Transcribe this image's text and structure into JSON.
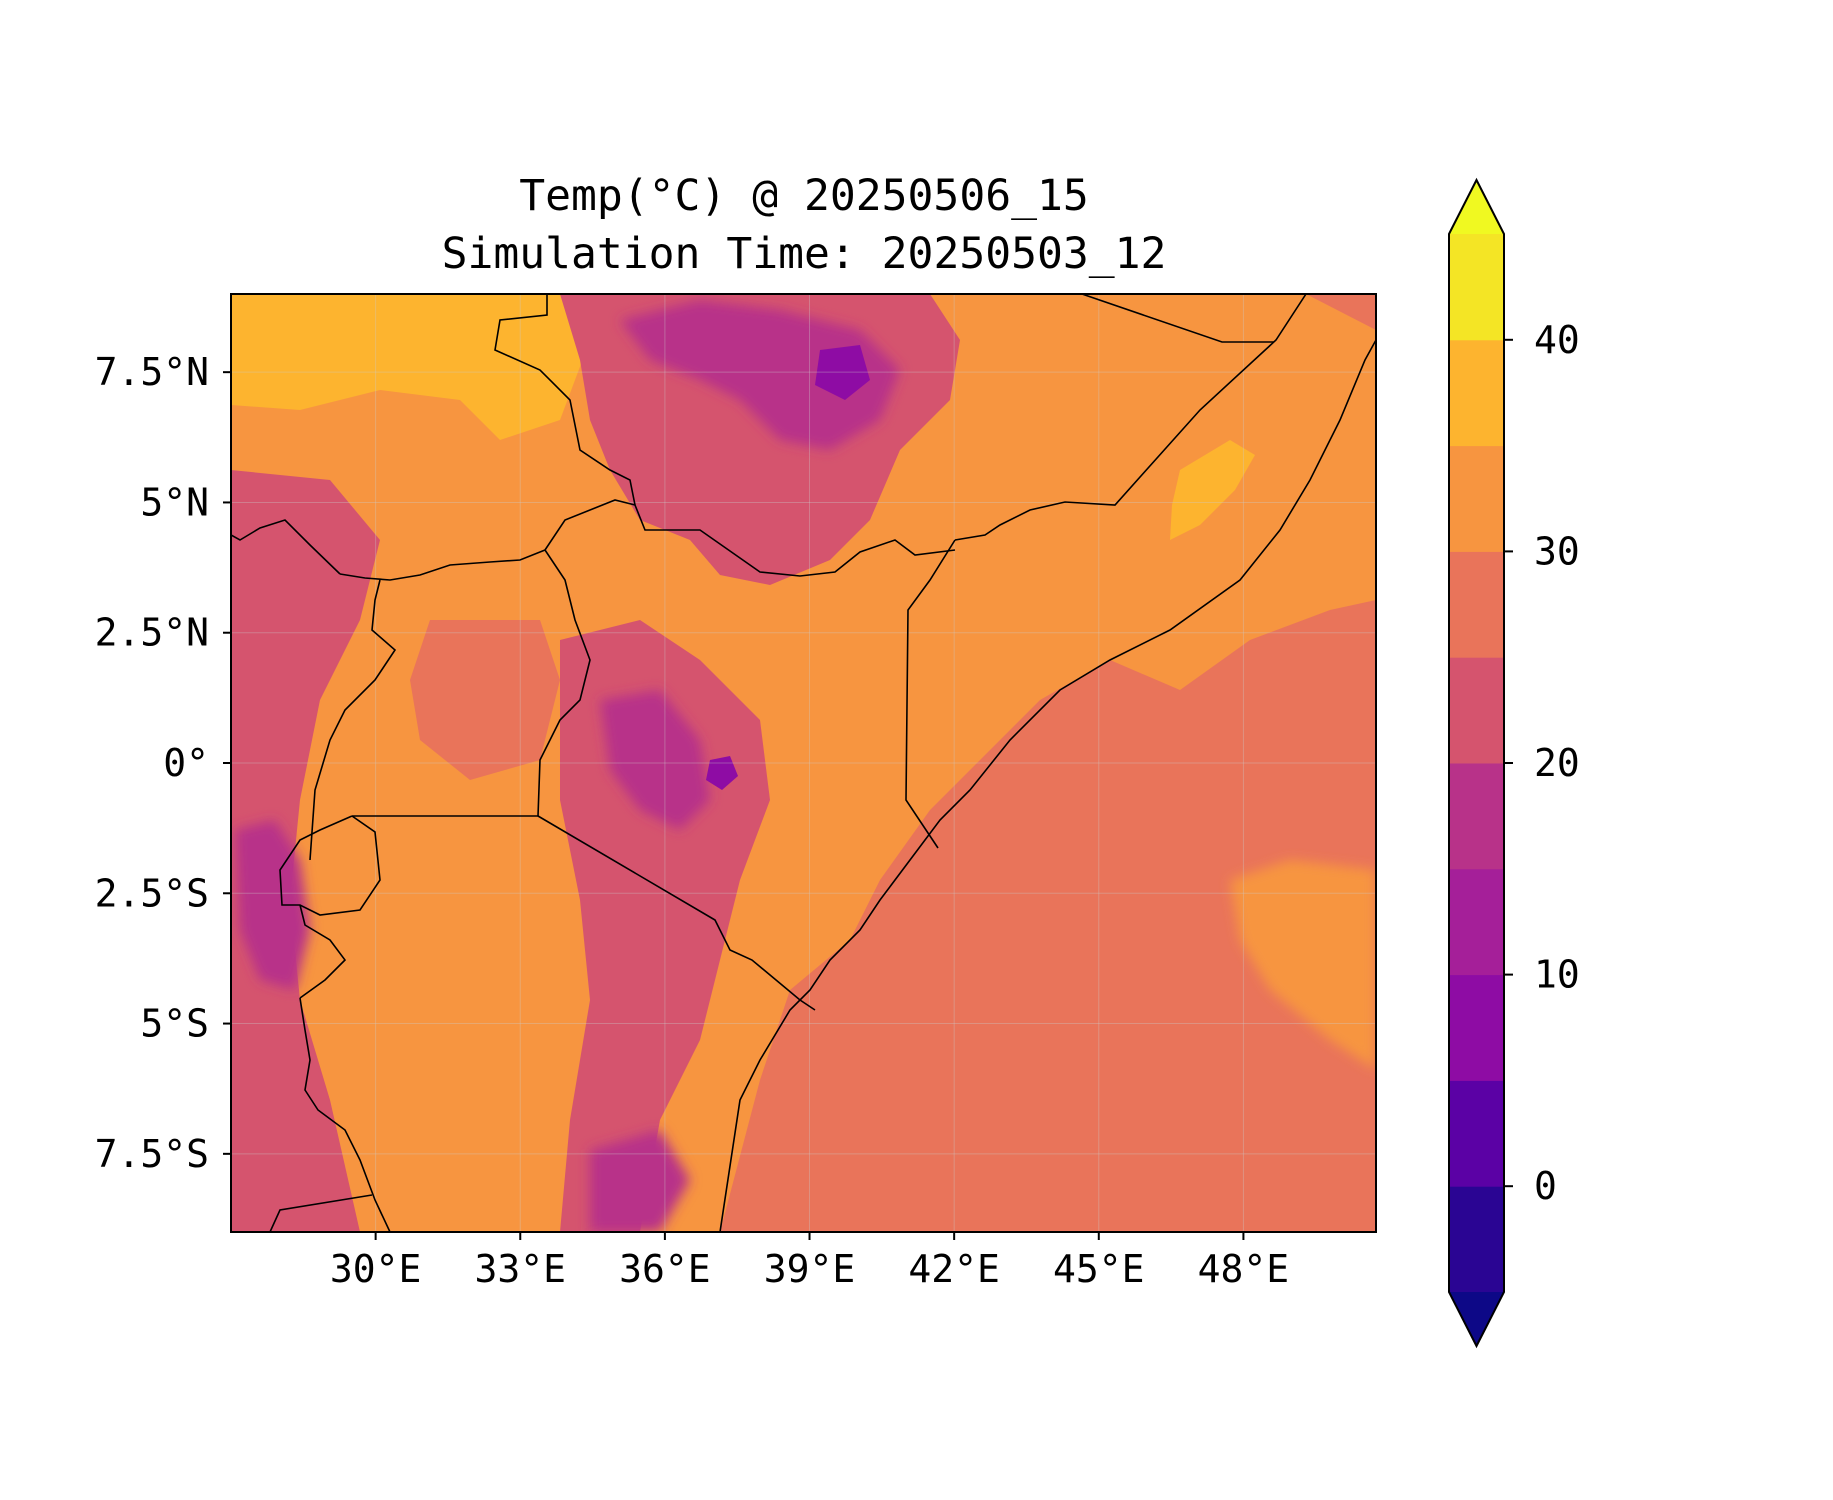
{
  "title": {
    "line1": "Temp(°C) @ 20250506_15",
    "line2": "Simulation Time: 20250503_12"
  },
  "map": {
    "lon_range": [
      27,
      50.75
    ],
    "lat_range": [
      -9,
      9
    ],
    "x_ticks": [
      {
        "value": 30,
        "label": "30°E"
      },
      {
        "value": 33,
        "label": "33°E"
      },
      {
        "value": 36,
        "label": "36°E"
      },
      {
        "value": 39,
        "label": "39°E"
      },
      {
        "value": 42,
        "label": "42°E"
      },
      {
        "value": 45,
        "label": "45°E"
      },
      {
        "value": 48,
        "label": "48°E"
      }
    ],
    "y_ticks": [
      {
        "value": 7.5,
        "label": "7.5°N"
      },
      {
        "value": 5,
        "label": "5°N"
      },
      {
        "value": 2.5,
        "label": "2.5°N"
      },
      {
        "value": 0,
        "label": "0°"
      },
      {
        "value": -2.5,
        "label": "2.5°S"
      },
      {
        "value": -5,
        "label": "5°S"
      },
      {
        "value": -7.5,
        "label": "7.5°S"
      }
    ],
    "gridlines": true,
    "colors": {
      "ocean": "#e9745a",
      "hot": "#f79540",
      "hotter": "#fdb42f",
      "mild": "#d5546e",
      "cool": "#b83289",
      "cold": "#8e0ca4"
    }
  },
  "colorbar": {
    "range": [
      -5,
      45
    ],
    "extend": "both",
    "levels": [
      -5,
      0,
      5,
      10,
      15,
      20,
      25,
      30,
      35,
      40,
      45
    ],
    "colors": [
      "#2a0593",
      "#5b01a5",
      "#8e0ca4",
      "#a51f99",
      "#b83289",
      "#d5546e",
      "#e9745a",
      "#f79540",
      "#fdb42f",
      "#f4e525"
    ],
    "under_color": "#0d0887",
    "over_color": "#f0f921",
    "ticks": [
      {
        "value": 0,
        "label": "0"
      },
      {
        "value": 10,
        "label": "10"
      },
      {
        "value": 20,
        "label": "20"
      },
      {
        "value": 30,
        "label": "30"
      },
      {
        "value": 40,
        "label": "40"
      }
    ]
  }
}
